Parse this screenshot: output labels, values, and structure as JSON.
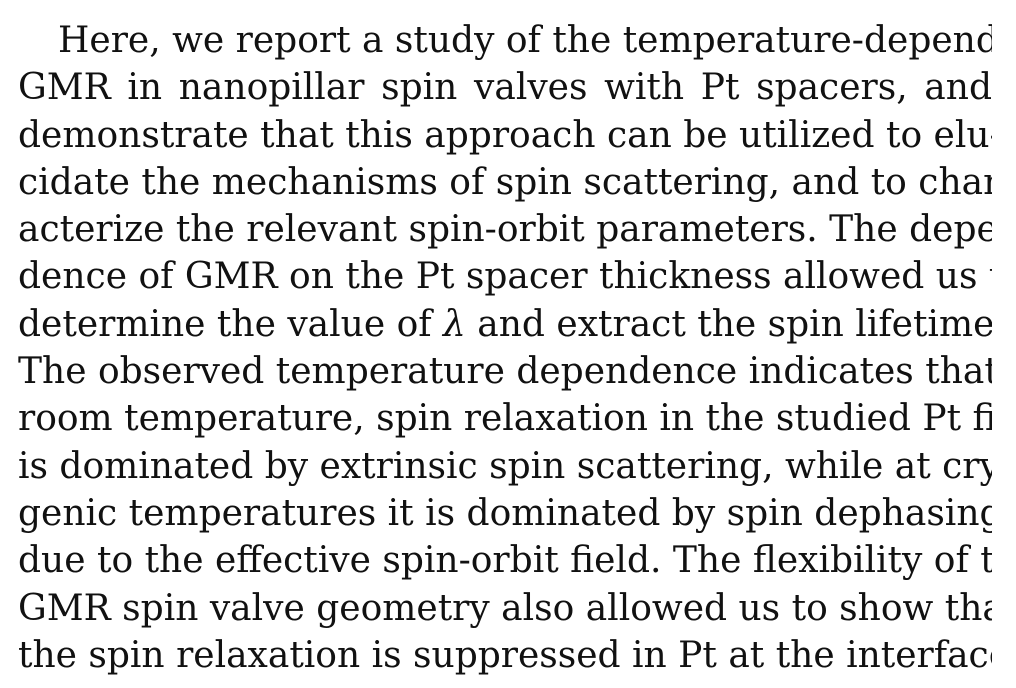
{
  "paragraph": {
    "lines": [
      "Here, we report a study of the temperature-dependent",
      "GMR in nanopillar spin valves with Pt spacers, and",
      "demonstrate that this approach can be utilized to elu-",
      "cidate the mechanisms of spin scattering, and to char-",
      "acterize the relevant spin-orbit parameters. The depen-",
      "dence of GMR on the Pt spacer thickness allowed us to",
      "determine the value of λ and extract the spin lifetime.",
      "The observed temperature dependence indicates that at",
      "room temperature, spin relaxation in the studied Pt films",
      "is dominated by extrinsic spin scattering, while at cryo-",
      "genic temperatures it is dominated by spin dephasing",
      "due to the effective spin-orbit field. The flexibility of the",
      "GMR spin valve geometry also allowed us to show that",
      "the spin relaxation is suppressed in Pt at the interface"
    ]
  }
}
